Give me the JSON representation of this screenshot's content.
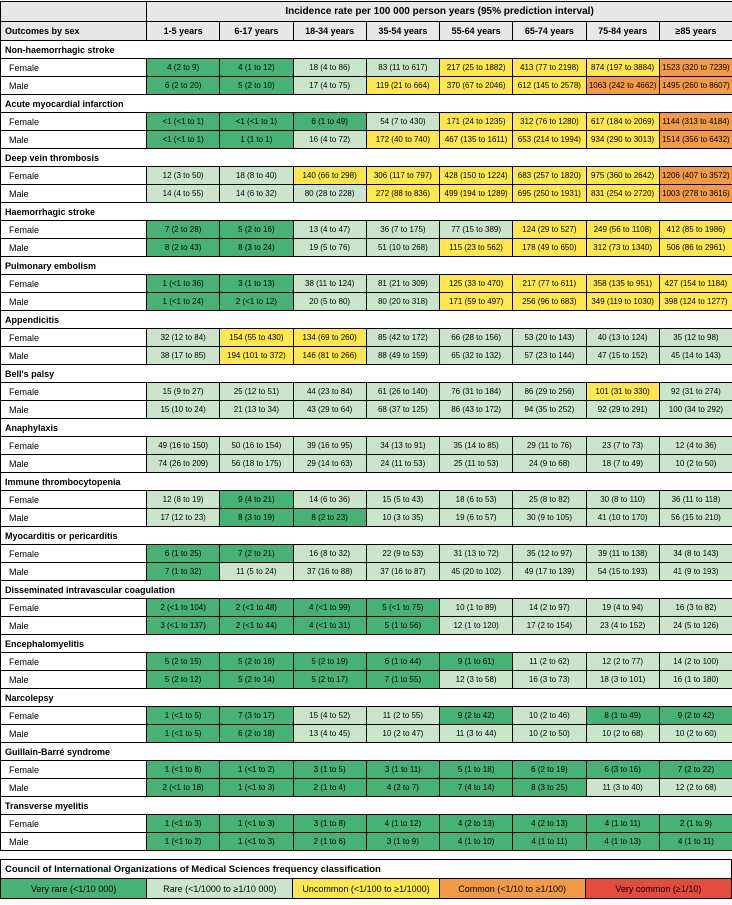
{
  "chart_data": {
    "type": "table",
    "title": "Incidence rate per 100 000 person years (95% prediction interval)",
    "corner_label": "Outcomes by sex",
    "age_columns": [
      "1-5 years",
      "6-17 years",
      "18-34 years",
      "35-54 years",
      "55-64 years",
      "65-74 years",
      "75-84 years",
      "≥85 years"
    ],
    "classification_colors": {
      "very_rare": "#47b275",
      "rare": "#cbe5cb",
      "uncommon": "#ffe74d",
      "common": "#f29b44",
      "very_common": "#e64c3b"
    },
    "classification_rule": "category from point estimate per 100 000 person years: <10 very_rare, 10-99 rare, 100-999 uncommon, 1000-9999 common, >=10000 very_common",
    "color_overrides": {
      "6-1-7": "rare"
    },
    "sections": [
      {
        "name": "Non-haemorrhagic stroke",
        "rows": [
          {
            "sex": "Female",
            "values": [
              "4 (2 to 9)",
              "4 (1 to 12)",
              "18 (4 to 86)",
              "83 (11 to 617)",
              "217 (25 to 1882)",
              "413 (77 to 2198)",
              "874 (197 to 3884)",
              "1523 (320 to 7239)"
            ]
          },
          {
            "sex": "Male",
            "values": [
              "6 (2 to 20)",
              "5 (2 to 10)",
              "17 (4 to 75)",
              "119 (21 to 664)",
              "370 (67 to 2046)",
              "612 (145 to 2578)",
              "1063 (242 to 4662)",
              "1495 (260 to 8607)"
            ]
          }
        ]
      },
      {
        "name": "Acute myocardial infarction",
        "rows": [
          {
            "sex": "Female",
            "values": [
              "<1 (<1 to 1)",
              "<1 (<1 to 1)",
              "6 (1 to 49)",
              "54 (7 to 430)",
              "171 (24 to 1235)",
              "312 (76 to 1280)",
              "617 (184 to 2069)",
              "1144 (313 to 4184)"
            ]
          },
          {
            "sex": "Male",
            "values": [
              "<1 (<1 to 1)",
              "1 (1 to 1)",
              "16 (4 to 72)",
              "172 (40 to 740)",
              "467 (135 to 1611)",
              "653 (214 to 1994)",
              "934 (290 to 3013)",
              "1514 (356 to 6432)"
            ]
          }
        ]
      },
      {
        "name": "Deep vein thrombosis",
        "rows": [
          {
            "sex": "Female",
            "values": [
              "12 (3 to 50)",
              "18 (8 to 40)",
              "140 (66 to 298)",
              "306 (117 to 797)",
              "428 (150 to 1224)",
              "683 (257 to 1820)",
              "975 (360 to 2642)",
              "1206 (407 to 3572)"
            ]
          },
          {
            "sex": "Male",
            "values": [
              "14 (4 to 55)",
              "14 (6 to 32)",
              "80 (28 to 228)",
              "272 (88 to 836)",
              "499 (194 to 1289)",
              "695 (250 to 1931)",
              "831 (254 to 2720)",
              "1003 (278 to 3616)"
            ]
          }
        ]
      },
      {
        "name": "Haemorrhagic stroke",
        "rows": [
          {
            "sex": "Female",
            "values": [
              "7 (2 to 28)",
              "5 (2 to 16)",
              "13 (4 to 47)",
              "36 (7 to 175)",
              "77 (15 to 389)",
              "124 (29 to 527)",
              "249 (56 to 1108)",
              "412 (85 to 1986)"
            ]
          },
          {
            "sex": "Male",
            "values": [
              "8 (2 to 43)",
              "8 (3 to 24)",
              "19 (5 to 76)",
              "51 (10 to 268)",
              "115 (23 to 562)",
              "178 (49 to 650)",
              "312 (73 to 1340)",
              "506 (86 to 2961)"
            ]
          }
        ]
      },
      {
        "name": "Pulmonary embolism",
        "rows": [
          {
            "sex": "Female",
            "values": [
              "1 (<1 to 36)",
              "3 (1 to 13)",
              "38 (11 to 124)",
              "81 (21 to 309)",
              "125 (33 to 470)",
              "217 (77 to 611)",
              "358 (135 to 951)",
              "427 (154 to 1184)"
            ]
          },
          {
            "sex": "Male",
            "values": [
              "1 (<1 to 24)",
              "2 (<1 to 12)",
              "20 (5 to 80)",
              "80 (20 to 318)",
              "171 (59 to 497)",
              "256 (96 to 683)",
              "349 (119 to 1030)",
              "398 (124 to 1277)"
            ]
          }
        ]
      },
      {
        "name": "Appendicitis",
        "rows": [
          {
            "sex": "Female",
            "values": [
              "32 (12 to 84)",
              "154 (55 to 430)",
              "134 (69 to 260)",
              "85 (42 to 172)",
              "66 (28 to 156)",
              "53 (20 to 143)",
              "40 (13 to 124)",
              "35 (12 to 98)"
            ]
          },
          {
            "sex": "Male",
            "values": [
              "38 (17 to 85)",
              "194 (101 to 372)",
              "146 (81 to 266)",
              "88 (49 to 159)",
              "65 (32 to 132)",
              "57 (23 to 144)",
              "47 (15 to 152)",
              "45 (14 to 143)"
            ]
          }
        ]
      },
      {
        "name": "Bell's palsy",
        "rows": [
          {
            "sex": "Female",
            "values": [
              "15 (9 to 27)",
              "25 (12 to 51)",
              "44 (23 to 84)",
              "61 (26 to 140)",
              "76 (31 to 184)",
              "86 (29 to 256)",
              "101 (31 to 330)",
              "92 (31 to 274)"
            ]
          },
          {
            "sex": "Male",
            "values": [
              "15 (10 to 24)",
              "21 (13 to 34)",
              "43 (29 to 64)",
              "68 (37 to 125)",
              "86 (43 to 172)",
              "94 (35 to 252)",
              "92 (29 to 291)",
              "100 (34 to 292)"
            ]
          }
        ]
      },
      {
        "name": "Anaphylaxis",
        "rows": [
          {
            "sex": "Female",
            "values": [
              "49 (16 to 150)",
              "50 (16 to 154)",
              "39 (16 to 95)",
              "34 (13 to 91)",
              "35 (14 to 85)",
              "29 (11 to 76)",
              "23 (7 to 73)",
              "12 (4 to 36)"
            ]
          },
          {
            "sex": "Male",
            "values": [
              "74 (26 to 209)",
              "56 (18 to 175)",
              "29 (14 to 63)",
              "24 (11 to 53)",
              "25 (11 to 53)",
              "24 (9 to 68)",
              "18 (7 to 49)",
              "10 (2 to 50)"
            ]
          }
        ]
      },
      {
        "name": "Immune thrombocytopenia",
        "rows": [
          {
            "sex": "Female",
            "values": [
              "12 (8 to 19)",
              "9 (4 to 21)",
              "14 (6 to 36)",
              "15 (5 to 43)",
              "18 (6 to 53)",
              "25 (8 to 82)",
              "30 (8 to 110)",
              "36 (11 to 118)"
            ]
          },
          {
            "sex": "Male",
            "values": [
              "17 (12 to 23)",
              "8 (3 to 19)",
              "8 (2 to 23)",
              "10 (3 to 35)",
              "19 (6 to 57)",
              "30 (9 to 105)",
              "41 (10 to 170)",
              "56 (15 to 210)"
            ]
          }
        ]
      },
      {
        "name": "Myocarditis or pericarditis",
        "rows": [
          {
            "sex": "Female",
            "values": [
              "6 (1 to 25)",
              "7 (2 to 21)",
              "16 (8 to 32)",
              "22 (9 to 53)",
              "31 (13 to 72)",
              "35 (12 to 97)",
              "39 (11 to 138)",
              "34 (8 to 143)"
            ]
          },
          {
            "sex": "Male",
            "values": [
              "7 (1 to 32)",
              "11 (5 to 24)",
              "37 (16 to 88)",
              "37 (16 to 87)",
              "45 (20 to 102)",
              "49 (17 to 139)",
              "54 (15 to 193)",
              "41 (9 to 193)"
            ]
          }
        ]
      },
      {
        "name": "Disseminated intravascular coagulation",
        "rows": [
          {
            "sex": "Female",
            "values": [
              "2 (<1 to 104)",
              "2 (<1 to 48)",
              "4 (<1 to 99)",
              "5 (<1 to 75)",
              "10 (1 to 89)",
              "14 (2 to 97)",
              "19 (4 to 94)",
              "16 (3 to 82)"
            ]
          },
          {
            "sex": "Male",
            "values": [
              "3 (<1 to 137)",
              "2 (<1 to 44)",
              "4 (<1 to 31)",
              "5 (1 to 56)",
              "12 (1 to 120)",
              "17 (2 to 154)",
              "23 (4 to 152)",
              "24 (5 to 126)"
            ]
          }
        ]
      },
      {
        "name": "Encephalomyelitis",
        "rows": [
          {
            "sex": "Female",
            "values": [
              "5 (2 to 15)",
              "5 (2 to 16)",
              "5 (2 to 19)",
              "6 (1 to 44)",
              "9 (1 to 61)",
              "11 (2 to 62)",
              "12 (2 to 77)",
              "14 (2 to 100)"
            ]
          },
          {
            "sex": "Male",
            "values": [
              "5 (2 to 12)",
              "5 (2 to 14)",
              "5 (2 to 17)",
              "7 (1 to 55)",
              "12 (3 to 58)",
              "16 (3 to 73)",
              "18 (3 to 101)",
              "16 (1 to 180)"
            ]
          }
        ]
      },
      {
        "name": "Narcolepsy",
        "rows": [
          {
            "sex": "Female",
            "values": [
              "1 (<1 to 5)",
              "7 (3 to 17)",
              "15 (4 to 52)",
              "11 (2 to 55)",
              "9 (2 to 42)",
              "10 (2 to 46)",
              "8 (1 to 49)",
              "9 (2 to 42)"
            ]
          },
          {
            "sex": "Male",
            "values": [
              "1 (<1 to 5)",
              "6 (2 to 18)",
              "13 (4 to 45)",
              "10 (2 to 47)",
              "11 (3 to 44)",
              "10 (2 to 50)",
              "10 (2 to 68)",
              "10 (2 to 60)"
            ]
          }
        ]
      },
      {
        "name": "Guillain-Barré syndrome",
        "rows": [
          {
            "sex": "Female",
            "values": [
              "1 (<1 to 8)",
              "1 (<1 to 2)",
              "3 (1 to 5)",
              "3 (1 to 11)",
              "5 (1 to 18)",
              "6 (2 to 19)",
              "6 (3 to 16)",
              "7 (2 to 22)"
            ]
          },
          {
            "sex": "Male",
            "values": [
              "2 (<1 to 18)",
              "1 (<1 to 3)",
              "2 (1 to 4)",
              "4 (2 to 7)",
              "7 (4 to 14)",
              "8 (3 to 25)",
              "11 (3 to 40)",
              "12 (2 to 68)"
            ]
          }
        ]
      },
      {
        "name": "Transverse myelitis",
        "rows": [
          {
            "sex": "Female",
            "values": [
              "1 (<1 to 3)",
              "1 (<1 to 3)",
              "3 (1 to 8)",
              "4 (1 to 12)",
              "4 (2 to 13)",
              "4 (2 to 13)",
              "4 (1 to 11)",
              "2 (1 to 9)"
            ]
          },
          {
            "sex": "Male",
            "values": [
              "1 (<1 to 2)",
              "1 (<1 to 3)",
              "2 (1 to 6)",
              "3 (1 to 9)",
              "4 (1 to 10)",
              "4 (1 to 11)",
              "4 (1 to 13)",
              "4 (1 to 11)"
            ]
          }
        ]
      }
    ],
    "legend": {
      "title": "Council of International Organizations of Medical Sciences frequency classification",
      "items": [
        {
          "label": "Very rare (<1/10 000)",
          "category": "very_rare"
        },
        {
          "label": "Rare (<1/1000 to ≥1/10 000)",
          "category": "rare"
        },
        {
          "label": "Uncommon (<1/100 to ≥1/1000)",
          "category": "uncommon"
        },
        {
          "label": "Common (<1/10 to ≥1/100)",
          "category": "common"
        },
        {
          "label": "Very common (≥1/10)",
          "category": "very_common"
        }
      ]
    }
  }
}
